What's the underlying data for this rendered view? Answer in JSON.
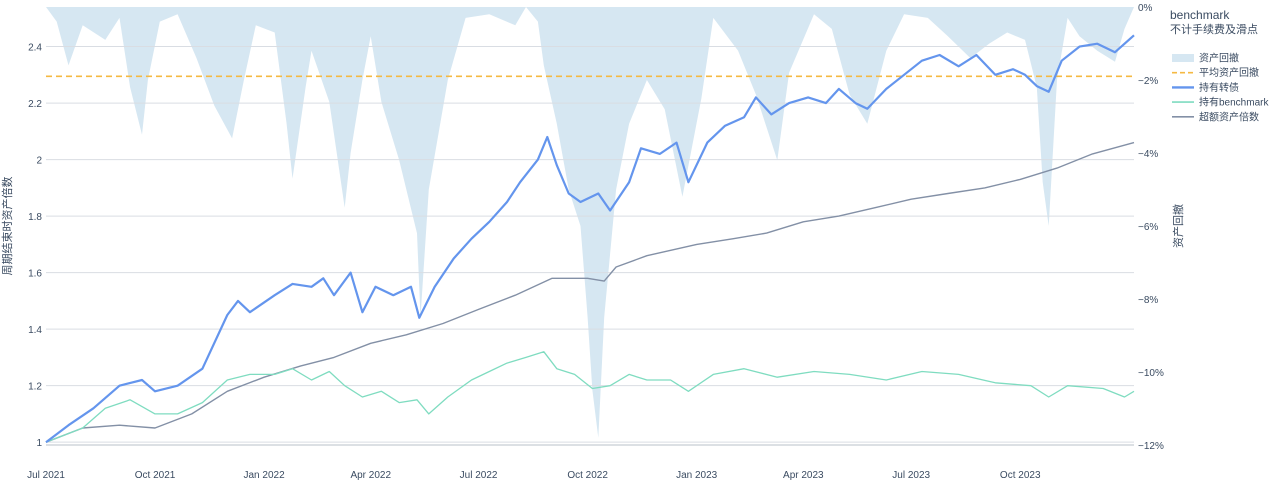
{
  "chart_data": {
    "type": "line",
    "legend_title": "benchmark",
    "legend_subtitle": "不计手续费及滑点",
    "legend_position": "top-right",
    "grid": true,
    "x_ticks": [
      "Jul 2021",
      "Oct 2021",
      "Jan 2022",
      "Apr 2022",
      "Jul 2022",
      "Oct 2022",
      "Jan 2023",
      "Apr 2023",
      "Jul 2023",
      "Oct 2023"
    ],
    "x_range": [
      "2021-07-01",
      "2024-01-05"
    ],
    "y_left": {
      "label": "周期结束时资产倍数",
      "range": [
        0.99,
        2.54
      ],
      "ticks": [
        "1",
        "1.2",
        "1.4",
        "1.6",
        "1.8",
        "2",
        "2.2",
        "2.4"
      ]
    },
    "y_right": {
      "label": "资产回撤",
      "range": [
        -12,
        0
      ],
      "ticks": [
        "0%",
        "−2%",
        "−4%",
        "−6%",
        "−8%",
        "−10%",
        "−12%"
      ]
    },
    "avg_drawdown": -1.9,
    "series": [
      {
        "name": "资产回撤",
        "kind": "area",
        "axis": "right",
        "color": "#d6e7f2",
        "points": [
          [
            "2021-07-01",
            0
          ],
          [
            "2021-07-10",
            -0.4
          ],
          [
            "2021-07-20",
            -1.6
          ],
          [
            "2021-08-01",
            -0.5
          ],
          [
            "2021-08-20",
            -0.9
          ],
          [
            "2021-09-01",
            -0.3
          ],
          [
            "2021-09-10",
            -2.2
          ],
          [
            "2021-09-20",
            -3.5
          ],
          [
            "2021-09-25",
            -2.0
          ],
          [
            "2021-10-05",
            -0.4
          ],
          [
            "2021-10-20",
            -0.2
          ],
          [
            "2021-11-05",
            -1.4
          ],
          [
            "2021-11-20",
            -2.7
          ],
          [
            "2021-12-05",
            -3.6
          ],
          [
            "2021-12-15",
            -2.0
          ],
          [
            "2021-12-25",
            -0.5
          ],
          [
            "2022-01-10",
            -0.7
          ],
          [
            "2022-01-20",
            -3.2
          ],
          [
            "2022-01-25",
            -4.7
          ],
          [
            "2022-02-05",
            -2.2
          ],
          [
            "2022-02-10",
            -1.2
          ],
          [
            "2022-02-25",
            -2.6
          ],
          [
            "2022-03-10",
            -5.5
          ],
          [
            "2022-03-15",
            -4.0
          ],
          [
            "2022-03-25",
            -2.0
          ],
          [
            "2022-04-01",
            -0.8
          ],
          [
            "2022-04-10",
            -2.6
          ],
          [
            "2022-04-25",
            -4.2
          ],
          [
            "2022-05-10",
            -6.2
          ],
          [
            "2022-05-13",
            -8.5
          ],
          [
            "2022-05-20",
            -5.0
          ],
          [
            "2022-06-05",
            -2.0
          ],
          [
            "2022-06-20",
            -0.3
          ],
          [
            "2022-07-10",
            -0.2
          ],
          [
            "2022-08-01",
            -0.5
          ],
          [
            "2022-08-10",
            0
          ],
          [
            "2022-08-20",
            -0.4
          ],
          [
            "2022-08-25",
            -1.6
          ],
          [
            "2022-09-05",
            -3.2
          ],
          [
            "2022-09-15",
            -5.0
          ],
          [
            "2022-09-25",
            -6.0
          ],
          [
            "2022-10-01",
            -8.5
          ],
          [
            "2022-10-05",
            -10.5
          ],
          [
            "2022-10-10",
            -11.8
          ],
          [
            "2022-10-15",
            -8.5
          ],
          [
            "2022-10-25",
            -5.0
          ],
          [
            "2022-11-05",
            -3.2
          ],
          [
            "2022-11-20",
            -2.0
          ],
          [
            "2022-12-05",
            -2.8
          ],
          [
            "2022-12-20",
            -5.2
          ],
          [
            "2023-01-05",
            -2.5
          ],
          [
            "2023-01-15",
            -0.3
          ],
          [
            "2023-02-05",
            -1.2
          ],
          [
            "2023-02-20",
            -2.4
          ],
          [
            "2023-03-10",
            -4.2
          ],
          [
            "2023-03-20",
            -1.8
          ],
          [
            "2023-04-10",
            -0.2
          ],
          [
            "2023-04-25",
            -0.6
          ],
          [
            "2023-05-10",
            -2.4
          ],
          [
            "2023-05-25",
            -3.2
          ],
          [
            "2023-06-10",
            -1.2
          ],
          [
            "2023-06-25",
            -0.2
          ],
          [
            "2023-07-15",
            -0.3
          ],
          [
            "2023-08-01",
            -0.8
          ],
          [
            "2023-08-20",
            -1.4
          ],
          [
            "2023-09-05",
            -1.0
          ],
          [
            "2023-09-20",
            -0.7
          ],
          [
            "2023-10-05",
            -0.9
          ],
          [
            "2023-10-15",
            -2.2
          ],
          [
            "2023-10-20",
            -4.8
          ],
          [
            "2023-10-25",
            -6.0
          ],
          [
            "2023-11-01",
            -2.0
          ],
          [
            "2023-11-10",
            -0.3
          ],
          [
            "2023-11-20",
            -0.8
          ],
          [
            "2023-12-05",
            -1.2
          ],
          [
            "2023-12-20",
            -1.5
          ],
          [
            "2023-12-28",
            -0.6
          ],
          [
            "2024-01-05",
            0
          ]
        ]
      },
      {
        "name": "平均资产回撤",
        "kind": "dashed-line",
        "axis": "right",
        "color": "#f5b942"
      },
      {
        "name": "持有转债",
        "kind": "line",
        "axis": "left",
        "color": "#6495ed",
        "points": [
          [
            "2021-07-01",
            1.0
          ],
          [
            "2021-07-20",
            1.06
          ],
          [
            "2021-08-10",
            1.12
          ],
          [
            "2021-09-01",
            1.2
          ],
          [
            "2021-09-20",
            1.22
          ],
          [
            "2021-10-01",
            1.18
          ],
          [
            "2021-10-20",
            1.2
          ],
          [
            "2021-11-10",
            1.26
          ],
          [
            "2021-12-01",
            1.45
          ],
          [
            "2021-12-10",
            1.5
          ],
          [
            "2021-12-20",
            1.46
          ],
          [
            "2022-01-10",
            1.52
          ],
          [
            "2022-01-25",
            1.56
          ],
          [
            "2022-02-10",
            1.55
          ],
          [
            "2022-02-20",
            1.58
          ],
          [
            "2022-03-01",
            1.52
          ],
          [
            "2022-03-15",
            1.6
          ],
          [
            "2022-03-25",
            1.46
          ],
          [
            "2022-04-05",
            1.55
          ],
          [
            "2022-04-20",
            1.52
          ],
          [
            "2022-05-05",
            1.55
          ],
          [
            "2022-05-12",
            1.44
          ],
          [
            "2022-05-25",
            1.55
          ],
          [
            "2022-06-10",
            1.65
          ],
          [
            "2022-06-25",
            1.72
          ],
          [
            "2022-07-10",
            1.78
          ],
          [
            "2022-07-25",
            1.85
          ],
          [
            "2022-08-05",
            1.92
          ],
          [
            "2022-08-20",
            2.0
          ],
          [
            "2022-08-28",
            2.08
          ],
          [
            "2022-09-05",
            1.98
          ],
          [
            "2022-09-15",
            1.88
          ],
          [
            "2022-09-25",
            1.85
          ],
          [
            "2022-10-10",
            1.88
          ],
          [
            "2022-10-20",
            1.82
          ],
          [
            "2022-11-05",
            1.92
          ],
          [
            "2022-11-15",
            2.04
          ],
          [
            "2022-12-01",
            2.02
          ],
          [
            "2022-12-15",
            2.06
          ],
          [
            "2022-12-25",
            1.92
          ],
          [
            "2023-01-10",
            2.06
          ],
          [
            "2023-01-25",
            2.12
          ],
          [
            "2023-02-10",
            2.15
          ],
          [
            "2023-02-20",
            2.22
          ],
          [
            "2023-03-05",
            2.16
          ],
          [
            "2023-03-20",
            2.2
          ],
          [
            "2023-04-05",
            2.22
          ],
          [
            "2023-04-20",
            2.2
          ],
          [
            "2023-05-01",
            2.25
          ],
          [
            "2023-05-15",
            2.2
          ],
          [
            "2023-05-25",
            2.18
          ],
          [
            "2023-06-10",
            2.25
          ],
          [
            "2023-06-25",
            2.3
          ],
          [
            "2023-07-10",
            2.35
          ],
          [
            "2023-07-25",
            2.37
          ],
          [
            "2023-08-10",
            2.33
          ],
          [
            "2023-08-25",
            2.37
          ],
          [
            "2023-09-10",
            2.3
          ],
          [
            "2023-09-25",
            2.32
          ],
          [
            "2023-10-05",
            2.3
          ],
          [
            "2023-10-15",
            2.26
          ],
          [
            "2023-10-25",
            2.24
          ],
          [
            "2023-11-05",
            2.35
          ],
          [
            "2023-11-20",
            2.4
          ],
          [
            "2023-12-05",
            2.41
          ],
          [
            "2023-12-20",
            2.38
          ],
          [
            "2024-01-05",
            2.44
          ]
        ]
      },
      {
        "name": "持有benchmark",
        "kind": "line",
        "axis": "left",
        "color": "#7fdcc0",
        "points": [
          [
            "2021-07-01",
            1.0
          ],
          [
            "2021-08-01",
            1.05
          ],
          [
            "2021-08-20",
            1.12
          ],
          [
            "2021-09-10",
            1.15
          ],
          [
            "2021-10-01",
            1.1
          ],
          [
            "2021-10-20",
            1.1
          ],
          [
            "2021-11-10",
            1.14
          ],
          [
            "2021-12-01",
            1.22
          ],
          [
            "2021-12-20",
            1.24
          ],
          [
            "2022-01-10",
            1.24
          ],
          [
            "2022-01-25",
            1.26
          ],
          [
            "2022-02-10",
            1.22
          ],
          [
            "2022-02-25",
            1.25
          ],
          [
            "2022-03-10",
            1.2
          ],
          [
            "2022-03-25",
            1.16
          ],
          [
            "2022-04-10",
            1.18
          ],
          [
            "2022-04-25",
            1.14
          ],
          [
            "2022-05-10",
            1.15
          ],
          [
            "2022-05-20",
            1.1
          ],
          [
            "2022-06-05",
            1.16
          ],
          [
            "2022-06-25",
            1.22
          ],
          [
            "2022-07-10",
            1.25
          ],
          [
            "2022-07-25",
            1.28
          ],
          [
            "2022-08-10",
            1.3
          ],
          [
            "2022-08-25",
            1.32
          ],
          [
            "2022-09-05",
            1.26
          ],
          [
            "2022-09-20",
            1.24
          ],
          [
            "2022-10-05",
            1.19
          ],
          [
            "2022-10-20",
            1.2
          ],
          [
            "2022-11-05",
            1.24
          ],
          [
            "2022-11-20",
            1.22
          ],
          [
            "2022-12-10",
            1.22
          ],
          [
            "2022-12-25",
            1.18
          ],
          [
            "2023-01-15",
            1.24
          ],
          [
            "2023-02-10",
            1.26
          ],
          [
            "2023-03-10",
            1.23
          ],
          [
            "2023-04-10",
            1.25
          ],
          [
            "2023-05-10",
            1.24
          ],
          [
            "2023-06-10",
            1.22
          ],
          [
            "2023-07-10",
            1.25
          ],
          [
            "2023-08-10",
            1.24
          ],
          [
            "2023-09-10",
            1.21
          ],
          [
            "2023-10-10",
            1.2
          ],
          [
            "2023-10-25",
            1.16
          ],
          [
            "2023-11-10",
            1.2
          ],
          [
            "2023-12-10",
            1.19
          ],
          [
            "2023-12-28",
            1.16
          ],
          [
            "2024-01-05",
            1.18
          ]
        ]
      },
      {
        "name": "超额资产倍数",
        "kind": "line",
        "axis": "left",
        "color": "#8390a6",
        "points": [
          [
            "2021-07-01",
            1.0
          ],
          [
            "2021-08-01",
            1.05
          ],
          [
            "2021-09-01",
            1.06
          ],
          [
            "2021-10-01",
            1.05
          ],
          [
            "2021-11-01",
            1.1
          ],
          [
            "2021-12-01",
            1.18
          ],
          [
            "2022-01-01",
            1.23
          ],
          [
            "2022-02-01",
            1.27
          ],
          [
            "2022-03-01",
            1.3
          ],
          [
            "2022-04-01",
            1.35
          ],
          [
            "2022-05-01",
            1.38
          ],
          [
            "2022-06-01",
            1.42
          ],
          [
            "2022-07-01",
            1.47
          ],
          [
            "2022-08-01",
            1.52
          ],
          [
            "2022-09-01",
            1.58
          ],
          [
            "2022-10-01",
            1.58
          ],
          [
            "2022-10-15",
            1.57
          ],
          [
            "2022-10-25",
            1.62
          ],
          [
            "2022-11-20",
            1.66
          ],
          [
            "2023-01-01",
            1.7
          ],
          [
            "2023-02-01",
            1.72
          ],
          [
            "2023-03-01",
            1.74
          ],
          [
            "2023-04-01",
            1.78
          ],
          [
            "2023-05-01",
            1.8
          ],
          [
            "2023-06-01",
            1.83
          ],
          [
            "2023-07-01",
            1.86
          ],
          [
            "2023-08-01",
            1.88
          ],
          [
            "2023-09-01",
            1.9
          ],
          [
            "2023-10-01",
            1.93
          ],
          [
            "2023-11-01",
            1.97
          ],
          [
            "2023-12-01",
            2.02
          ],
          [
            "2024-01-05",
            2.06
          ]
        ]
      }
    ]
  }
}
